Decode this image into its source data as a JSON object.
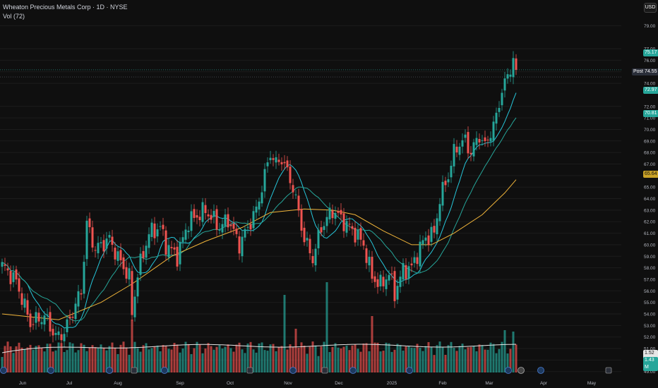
{
  "header": {
    "title": "Wheaton Precious Metals Corp · 1D · NYSE",
    "volume_label": "Vol (72)"
  },
  "currency": "USD",
  "badges": {
    "last_price": "75.17",
    "post_label": "Post",
    "post_price": "74.55",
    "ma10": "72.97",
    "ma20": "70.81",
    "ma50": "65.64",
    "vol_ma": "1.52 M",
    "vol_last": "1.43 M"
  },
  "colors": {
    "up": "#26a69a",
    "down": "#ef5350",
    "ma_fast": "#26c6da",
    "ma_mid": "#26a69a",
    "ma_slow": "#f0b43a",
    "vol_ma": "#e6e6e6",
    "background": "#0f0f0f"
  },
  "chart_data": {
    "type": "candlestick",
    "price_axis": {
      "ticks": [
        "79.00",
        "77.00",
        "76.00",
        "75.00",
        "74.00",
        "72.00",
        "71.00",
        "70.00",
        "69.00",
        "68.00",
        "67.00",
        "66.00",
        "65.00",
        "64.00",
        "63.00",
        "62.00",
        "61.00",
        "60.00",
        "59.00",
        "58.00",
        "57.00",
        "56.00",
        "55.00",
        "54.00",
        "53.00",
        "52.00",
        "51.00",
        "50.00",
        "49.00"
      ],
      "range": [
        48.8,
        80.0
      ]
    },
    "time_axis": [
      "Jun",
      "Jul",
      "Aug",
      "Sep",
      "Oct",
      "Nov",
      "Dec",
      "2025",
      "Feb",
      "Mar",
      "Apr",
      "May"
    ],
    "anchors": [
      [
        0,
        58.2
      ],
      [
        5,
        56.8
      ],
      [
        10,
        53.2
      ],
      [
        15,
        53.8
      ],
      [
        19,
        52.0
      ],
      [
        22,
        52.4
      ],
      [
        28,
        56.0
      ],
      [
        30,
        61.8
      ],
      [
        33,
        59.6
      ],
      [
        38,
        60.5
      ],
      [
        41,
        58.9
      ],
      [
        45,
        57.2
      ],
      [
        46,
        54.0
      ],
      [
        48,
        57.5
      ],
      [
        52,
        61.0
      ],
      [
        56,
        61.5
      ],
      [
        58,
        60.0
      ],
      [
        62,
        59.0
      ],
      [
        66,
        62.0
      ],
      [
        72,
        63.0
      ],
      [
        77,
        61.5
      ],
      [
        80,
        62.2
      ],
      [
        84,
        60.0
      ],
      [
        87,
        61.5
      ],
      [
        90,
        63.0
      ],
      [
        93,
        66.0
      ],
      [
        95,
        68.0
      ],
      [
        97,
        67.0
      ],
      [
        99,
        67.5
      ],
      [
        103,
        65.0
      ],
      [
        107,
        60.5
      ],
      [
        110,
        58.8
      ],
      [
        113,
        61.5
      ],
      [
        117,
        63.0
      ],
      [
        121,
        62.0
      ],
      [
        125,
        61.0
      ],
      [
        128,
        60.0
      ],
      [
        131,
        57.2
      ],
      [
        134,
        56.5
      ],
      [
        137,
        57.5
      ],
      [
        139,
        55.8
      ],
      [
        142,
        57.8
      ],
      [
        145,
        58.0
      ],
      [
        148,
        59.8
      ],
      [
        150,
        60.6
      ],
      [
        153,
        61.0
      ],
      [
        155,
        64.0
      ],
      [
        158,
        66.0
      ],
      [
        160,
        68.0
      ],
      [
        162,
        68.8
      ],
      [
        164,
        69.0
      ],
      [
        166,
        68.0
      ],
      [
        169,
        69.5
      ],
      [
        171,
        68.5
      ],
      [
        173,
        69.8
      ],
      [
        175,
        71.0
      ],
      [
        177,
        73.5
      ],
      [
        179,
        74.5
      ],
      [
        181,
        76.2
      ],
      [
        182,
        75.2
      ]
    ],
    "ma_slow": [
      [
        0,
        54.0
      ],
      [
        20,
        53.5
      ],
      [
        35,
        55.0
      ],
      [
        46,
        56.6
      ],
      [
        60,
        59.0
      ],
      [
        72,
        60.3
      ],
      [
        85,
        61.5
      ],
      [
        95,
        62.8
      ],
      [
        107,
        63.1
      ],
      [
        117,
        63.0
      ],
      [
        125,
        62.6
      ],
      [
        135,
        61.2
      ],
      [
        145,
        60.0
      ],
      [
        152,
        60.0
      ],
      [
        160,
        61.0
      ],
      [
        170,
        62.6
      ],
      [
        178,
        64.5
      ],
      [
        182,
        65.64
      ]
    ],
    "volume_ma": "1.52 M",
    "series": [
      {
        "name": "Price",
        "source": "anchors"
      }
    ]
  }
}
